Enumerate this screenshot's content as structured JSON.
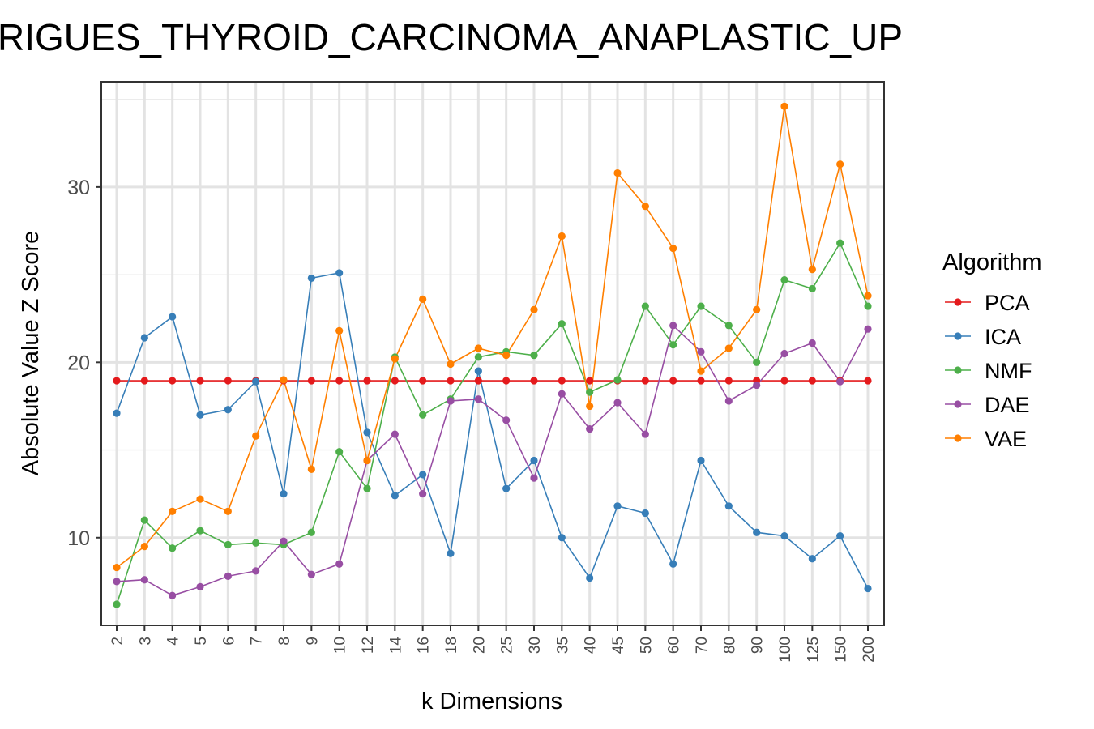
{
  "chart_data": {
    "type": "line",
    "title": "RIGUES_THYROID_CARCINOMA_ANAPLASTIC_UP",
    "xlabel": "k Dimensions",
    "ylabel": "Absolute Value Z Score",
    "categories": [
      "2",
      "3",
      "4",
      "5",
      "6",
      "7",
      "8",
      "9",
      "10",
      "12",
      "14",
      "16",
      "18",
      "20",
      "25",
      "30",
      "35",
      "40",
      "45",
      "50",
      "60",
      "70",
      "80",
      "90",
      "100",
      "125",
      "150",
      "200"
    ],
    "ylim": [
      5,
      36
    ],
    "yticks": [
      10,
      20,
      30
    ],
    "grid": true,
    "legend": {
      "title": "Algorithm",
      "position": "right"
    },
    "series": [
      {
        "name": "PCA",
        "color": "#e41a1c",
        "values": [
          18.95,
          18.95,
          18.95,
          18.95,
          18.95,
          18.95,
          18.95,
          18.95,
          18.95,
          18.95,
          18.95,
          18.95,
          18.95,
          18.95,
          18.95,
          18.95,
          18.95,
          18.95,
          18.95,
          18.95,
          18.95,
          18.95,
          18.95,
          18.95,
          18.95,
          18.95,
          18.95,
          18.95
        ]
      },
      {
        "name": "ICA",
        "color": "#377eb8",
        "values": [
          17.1,
          21.4,
          22.6,
          17.0,
          17.3,
          18.9,
          12.5,
          24.8,
          25.1,
          16.0,
          12.4,
          13.6,
          9.1,
          19.5,
          12.8,
          14.4,
          10.0,
          7.7,
          11.8,
          11.4,
          8.5,
          14.4,
          11.8,
          10.3,
          10.1,
          8.8,
          10.1,
          7.1
        ]
      },
      {
        "name": "NMF",
        "color": "#4daf4a",
        "values": [
          6.2,
          11.0,
          9.4,
          10.4,
          9.6,
          9.7,
          9.6,
          10.3,
          14.9,
          12.8,
          20.3,
          17.0,
          17.9,
          20.3,
          20.6,
          20.4,
          22.2,
          18.3,
          19.0,
          23.2,
          21.0,
          23.2,
          22.1,
          20.0,
          24.7,
          24.2,
          26.8,
          23.2
        ]
      },
      {
        "name": "DAE",
        "color": "#984ea3",
        "values": [
          7.5,
          7.6,
          6.7,
          7.2,
          7.8,
          8.1,
          9.8,
          7.9,
          8.5,
          14.4,
          15.9,
          12.5,
          17.8,
          17.9,
          16.7,
          13.4,
          18.2,
          16.2,
          17.7,
          15.9,
          22.1,
          20.6,
          17.8,
          18.7,
          20.5,
          21.1,
          18.9,
          21.9
        ]
      },
      {
        "name": "VAE",
        "color": "#ff7f00",
        "values": [
          8.3,
          9.5,
          11.5,
          12.2,
          11.5,
          15.8,
          19.0,
          13.9,
          21.8,
          14.4,
          20.2,
          23.6,
          19.9,
          20.8,
          20.4,
          23.0,
          27.2,
          17.5,
          30.8,
          28.9,
          26.5,
          19.5,
          20.8,
          23.0,
          34.6,
          25.3,
          31.3,
          23.8
        ]
      }
    ]
  }
}
